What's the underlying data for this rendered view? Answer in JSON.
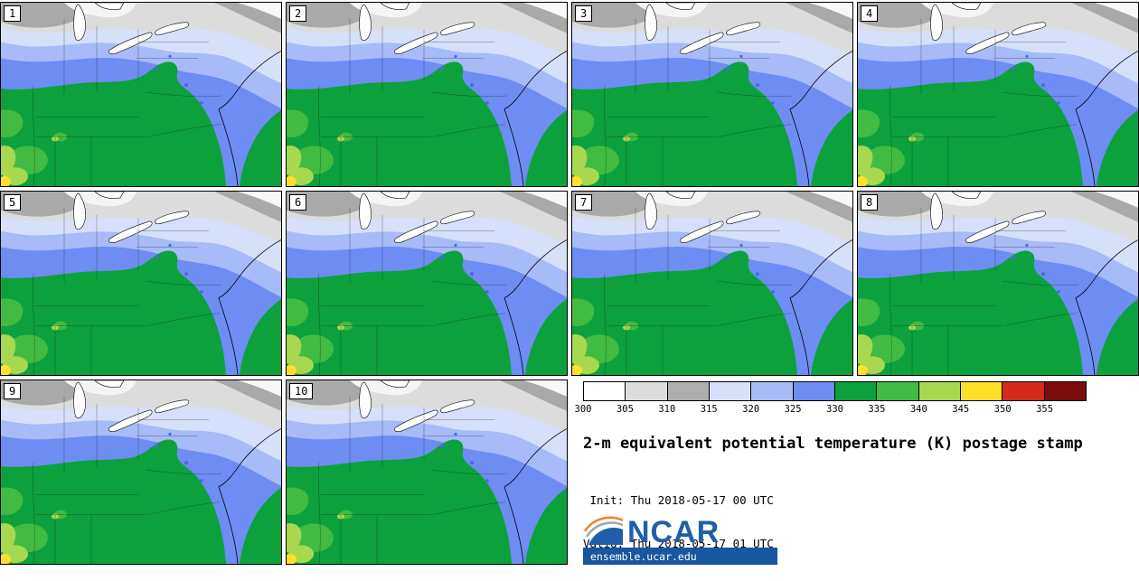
{
  "panels": [
    {
      "number": "1"
    },
    {
      "number": "2"
    },
    {
      "number": "3"
    },
    {
      "number": "4"
    },
    {
      "number": "5"
    },
    {
      "number": "6"
    },
    {
      "number": "7"
    },
    {
      "number": "8"
    },
    {
      "number": "9"
    },
    {
      "number": "10"
    }
  ],
  "colorbar": {
    "units": "K",
    "ticks": [
      "300",
      "305",
      "310",
      "315",
      "320",
      "325",
      "330",
      "335",
      "340",
      "345",
      "350",
      "355"
    ],
    "segments": [
      {
        "from": "300",
        "color": "#ffffff"
      },
      {
        "from": "305",
        "color": "#dcdcdc"
      },
      {
        "from": "310",
        "color": "#aeaeae"
      },
      {
        "from": "315",
        "color": "#d6e0fb"
      },
      {
        "from": "320",
        "color": "#a6bbf8"
      },
      {
        "from": "325",
        "color": "#6d8df3"
      },
      {
        "from": "330",
        "color": "#0ca13c"
      },
      {
        "from": "335",
        "color": "#42bb42"
      },
      {
        "from": "340",
        "color": "#a8d850"
      },
      {
        "from": "345",
        "color": "#ffdf29"
      },
      {
        "from": "350",
        "color": "#d42a1e"
      },
      {
        "from": "355",
        "color": "#7a0c0c"
      }
    ]
  },
  "caption": {
    "title": "2-m equivalent potential temperature (K) postage stamp",
    "init": " Init: Thu 2018-05-17 00 UTC",
    "valid": "Valid: Thu 2018-05-17 01 UTC"
  },
  "branding": {
    "logo_text": "NCAR",
    "site": "ensemble.ucar.edu",
    "logo_blue": "#1f5fa9",
    "bar_blue": "#17579e",
    "swoosh_orange": "#f5821f"
  }
}
